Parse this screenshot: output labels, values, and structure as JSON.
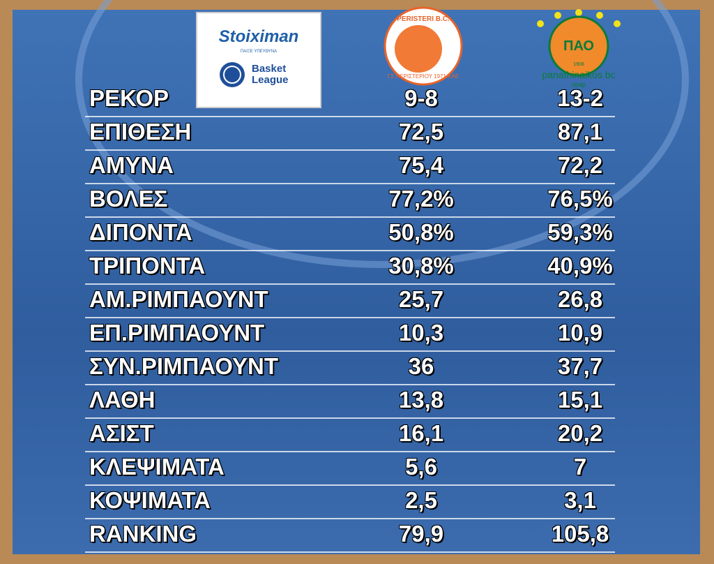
{
  "header": {
    "sponsor": "Stoiximan",
    "sponsor_note": "ΠΑΙΞΕ ΥΠΕΥΘΥΝΑ",
    "league": "Basket League",
    "team1": {
      "name": "PERISTERI B.C.",
      "subtitle": "ΓΣ ΠΕΡΙΣΤΕΡΙΟΥ 1971 ΚΑΕ"
    },
    "team2": {
      "name": "panathinaikos bc",
      "monogram": "ΠΑΟ",
      "year": "1908",
      "sponsor": "opap"
    }
  },
  "table": {
    "rows": [
      [
        "ΡΕΚΟΡ",
        "9-8",
        "13-2"
      ],
      [
        "ΕΠΙΘΕΣΗ",
        "72,5",
        "87,1"
      ],
      [
        "ΑΜΥΝΑ",
        "75,4",
        "72,2"
      ],
      [
        "ΒΟΛΕΣ",
        "77,2%",
        "76,5%"
      ],
      [
        "ΔΙΠΟΝΤΑ",
        "50,8%",
        "59,3%"
      ],
      [
        "ΤΡΙΠΟΝΤΑ",
        "30,8%",
        "40,9%"
      ],
      [
        "ΑΜ.ΡΙΜΠΑΟΥΝΤ",
        "25,7",
        "26,8"
      ],
      [
        "ΕΠ.ΡΙΜΠΑΟΥΝΤ",
        "10,3",
        "10,9"
      ],
      [
        "ΣΥΝ.ΡΙΜΠΑΟΥΝΤ",
        "36",
        "37,7"
      ],
      [
        "ΛΑΘΗ",
        "13,8",
        "15,1"
      ],
      [
        "ΑΣΙΣΤ",
        "16,1",
        "20,2"
      ],
      [
        "ΚΛΕΨΙΜΑΤΑ",
        "5,6",
        "7"
      ],
      [
        "ΚΟΨΙΜΑΤΑ",
        "2,5",
        "3,1"
      ],
      [
        "RANKING",
        "79,9",
        "105,8"
      ]
    ]
  }
}
